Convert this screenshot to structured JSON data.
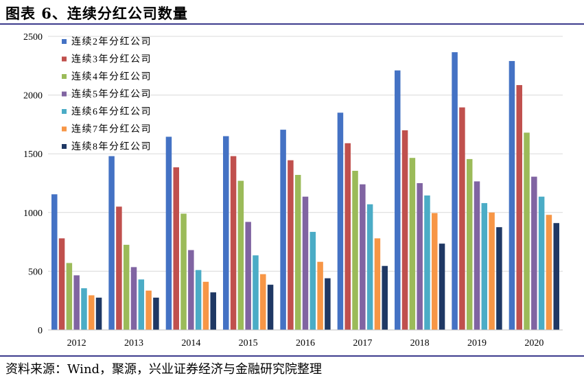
{
  "figure": {
    "title": "图表 6、连续分红公司数量",
    "source": "资料来源：Wind，聚源，兴业证券经济与金融研究院整理"
  },
  "chart_data": {
    "type": "bar",
    "categories": [
      "2012",
      "2013",
      "2014",
      "2015",
      "2016",
      "2017",
      "2018",
      "2019",
      "2020"
    ],
    "series": [
      {
        "name": "连续2年分红公司",
        "color": "#4472c4",
        "values": [
          1155,
          1480,
          1645,
          1650,
          1705,
          1850,
          2210,
          2365,
          2290
        ]
      },
      {
        "name": "连续3年分红公司",
        "color": "#c0504d",
        "values": [
          780,
          1050,
          1385,
          1480,
          1445,
          1590,
          1700,
          1895,
          2085
        ]
      },
      {
        "name": "连续4年分红公司",
        "color": "#9bbb59",
        "values": [
          570,
          725,
          990,
          1270,
          1320,
          1355,
          1465,
          1455,
          1680
        ]
      },
      {
        "name": "连续5年分红公司",
        "color": "#8064a2",
        "values": [
          465,
          535,
          680,
          920,
          1135,
          1240,
          1250,
          1265,
          1305
        ]
      },
      {
        "name": "连续6年分红公司",
        "color": "#4bacc6",
        "values": [
          355,
          430,
          510,
          635,
          835,
          1070,
          1145,
          1080,
          1135
        ]
      },
      {
        "name": "连续7年分红公司",
        "color": "#f79646",
        "values": [
          295,
          335,
          410,
          475,
          580,
          780,
          995,
          1000,
          980
        ]
      },
      {
        "name": "连续8年分红公司",
        "color": "#1f3864",
        "values": [
          275,
          275,
          320,
          385,
          440,
          545,
          735,
          875,
          910
        ]
      }
    ],
    "yticks": [
      "0",
      "500",
      "1000",
      "1500",
      "2000",
      "2500"
    ],
    "ylim": [
      0,
      2500
    ],
    "grid": true,
    "legend_position": "top-left"
  }
}
